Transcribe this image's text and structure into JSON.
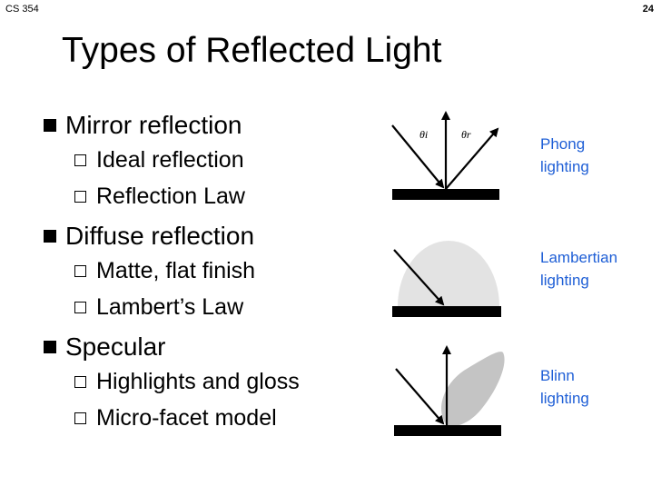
{
  "header": {
    "course": "CS 354",
    "page_number": "24"
  },
  "title": "Types of Reflected Light",
  "bullets": [
    {
      "label": "Mirror reflection",
      "subs": [
        "Ideal reflection",
        "Reflection Law"
      ]
    },
    {
      "label": "Diffuse reflection",
      "subs": [
        "Matte, flat finish",
        "Lambert’s Law"
      ]
    },
    {
      "label": "Specular",
      "subs": [
        "Highlights and gloss",
        "Micro-facet model"
      ]
    }
  ],
  "diagrams": {
    "mirror": {
      "theta_i": "θi",
      "theta_r": "θr"
    }
  },
  "captions": [
    {
      "line1": "Phong",
      "line2": "lighting"
    },
    {
      "line1": "Lambertian",
      "line2": "lighting"
    },
    {
      "line1": "Blinn",
      "line2": "lighting"
    }
  ],
  "colors": {
    "caption": "#1f5fd6",
    "lobe_fill_light": "#e3e3e3",
    "lobe_fill_gray": "#c4c4c4"
  }
}
